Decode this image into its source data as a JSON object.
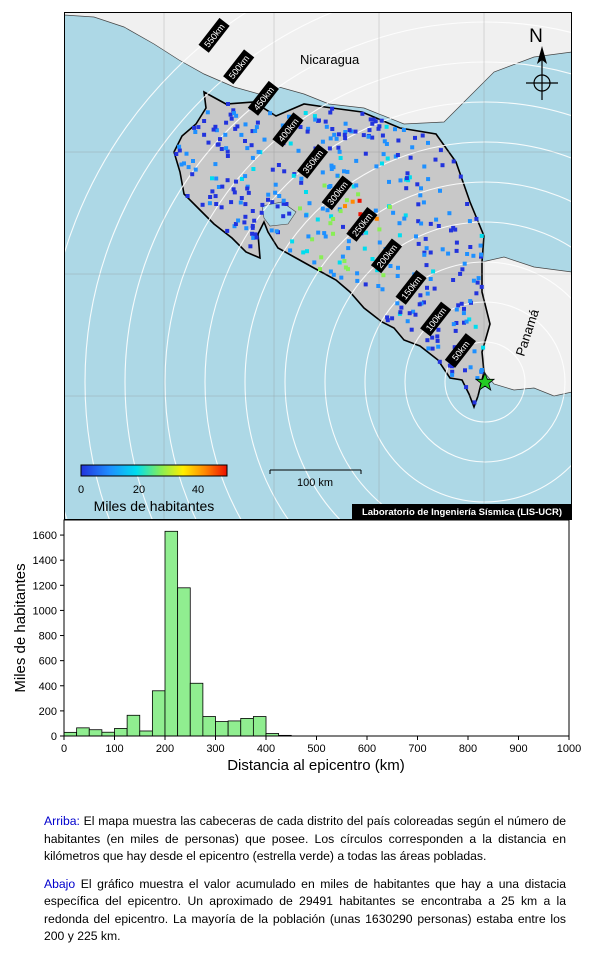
{
  "map": {
    "country_nicaragua": "Nicaragua",
    "country_panama": "Panamá",
    "north_label": "N",
    "scale_bar_label": "100 km",
    "credit": "Laboratorio de Ingeniería Sísmica (LIS-UCR)",
    "ring_labels": [
      "50km",
      "100km",
      "150km",
      "200km",
      "250km",
      "300km",
      "350km",
      "400km",
      "450km",
      "500km",
      "550km"
    ],
    "colorbar": {
      "label": "Miles de habitantes",
      "ticks": [
        "0",
        "20",
        "40"
      ],
      "range": [
        0,
        50
      ],
      "colors": [
        "#2233dd",
        "#1e90ff",
        "#00ddee",
        "#88ee55",
        "#ffee00",
        "#ff8800",
        "#ee1100"
      ]
    },
    "colors": {
      "ocean": "#add8e6",
      "land_cr": "#c8c8c8",
      "land_other": "#f0f0f0",
      "epicenter": "#22cc22"
    }
  },
  "chart_data": {
    "type": "bar",
    "xlabel": "Distancia al epicentro (km)",
    "ylabel": "Miles de habitantes",
    "xlim": [
      0,
      1000
    ],
    "ylim": [
      0,
      1720
    ],
    "xticks": [
      "0",
      "100",
      "200",
      "300",
      "400",
      "500",
      "600",
      "700",
      "800",
      "900",
      "1000"
    ],
    "yticks": [
      "0",
      "200",
      "400",
      "600",
      "800",
      "1000",
      "1200",
      "1400",
      "1600"
    ],
    "bin_width": 25,
    "bins_start": [
      0,
      25,
      50,
      75,
      100,
      125,
      150,
      175,
      200,
      225,
      250,
      275,
      300,
      325,
      350,
      375,
      400,
      425
    ],
    "values": [
      29,
      65,
      50,
      30,
      60,
      165,
      40,
      360,
      1630,
      1180,
      420,
      155,
      115,
      120,
      140,
      155,
      20,
      5
    ],
    "bar_color": "#90ee90"
  },
  "caption": {
    "p1_label": "Arriba:",
    "p1_text": " El mapa muestra las cabeceras de cada distrito del país coloreadas según el número de habitantes (en miles de personas) que posee.  Los círculos corresponden a la distancia en kilómetros que hay desde el epicentro (estrella verde) a todas las áreas pobladas.",
    "p2_label": "Abajo",
    "p2_text": " El gráfico muestra el valor acumulado en miles de habitantes que hay a una distacia específica del epicentro.  Un aproximado de 29491 habitantes se encontraba a 25 km a la redonda del epicentro.  La mayoría de la población (unas 1630290 personas) estaba entre los 200 y 225 km."
  }
}
